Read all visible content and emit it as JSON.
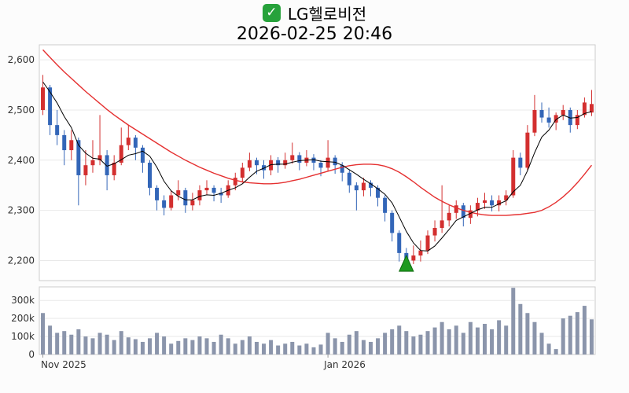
{
  "header": {
    "checkbox_glyph": "✓",
    "title": "LG헬로비전",
    "datetime": "2026-02-25 20:46"
  },
  "colors": {
    "up": "#d32f2f",
    "down": "#3366b8",
    "ma_short": "#000000",
    "ma_long": "#e53030",
    "volume": "#8b95ab",
    "marker": "#1f9a1f",
    "marker_edge": "#0d6b0d",
    "grid": "#e9e9e9",
    "axis_text": "#333333",
    "plot_border": "#cccccc",
    "plot_fill": "#ffffff"
  },
  "chart_data": {
    "type": "candlestick+volume",
    "title": "LG헬로비전",
    "subtitle": "2026-02-25 20:46",
    "legend": "none",
    "grid": true,
    "price_axis": {
      "ticks": [
        "2,600",
        "2,500",
        "2,400",
        "2,300",
        "2,200"
      ],
      "tick_values": [
        2600,
        2500,
        2400,
        2300,
        2200
      ],
      "range": [
        2160,
        2630
      ]
    },
    "volume_axis": {
      "ticks": [
        "300k",
        "200k",
        "100k",
        "0"
      ],
      "tick_values": [
        300,
        200,
        100,
        0
      ],
      "unit": "k shares",
      "range": [
        0,
        375
      ]
    },
    "x_axis": {
      "labels": [
        {
          "text": "Nov 2025",
          "index": 0
        },
        {
          "text": "Jan 2026",
          "index": 40
        }
      ]
    },
    "candles_format": [
      "open",
      "high",
      "low",
      "close"
    ],
    "candles": [
      [
        2500,
        2570,
        2490,
        2545
      ],
      [
        2545,
        2550,
        2450,
        2470
      ],
      [
        2470,
        2500,
        2430,
        2450
      ],
      [
        2450,
        2460,
        2390,
        2420
      ],
      [
        2420,
        2460,
        2400,
        2440
      ],
      [
        2440,
        2445,
        2310,
        2370
      ],
      [
        2370,
        2420,
        2350,
        2390
      ],
      [
        2390,
        2440,
        2375,
        2400
      ],
      [
        2400,
        2490,
        2390,
        2410
      ],
      [
        2410,
        2420,
        2340,
        2370
      ],
      [
        2370,
        2410,
        2360,
        2395
      ],
      [
        2395,
        2465,
        2390,
        2430
      ],
      [
        2430,
        2470,
        2420,
        2445
      ],
      [
        2445,
        2450,
        2400,
        2425
      ],
      [
        2425,
        2430,
        2375,
        2395
      ],
      [
        2395,
        2400,
        2330,
        2345
      ],
      [
        2345,
        2350,
        2300,
        2320
      ],
      [
        2320,
        2330,
        2290,
        2305
      ],
      [
        2305,
        2340,
        2300,
        2330
      ],
      [
        2330,
        2360,
        2320,
        2340
      ],
      [
        2340,
        2345,
        2295,
        2310
      ],
      [
        2310,
        2335,
        2300,
        2320
      ],
      [
        2320,
        2350,
        2310,
        2340
      ],
      [
        2340,
        2360,
        2330,
        2345
      ],
      [
        2345,
        2350,
        2318,
        2335
      ],
      [
        2335,
        2345,
        2315,
        2330
      ],
      [
        2330,
        2360,
        2325,
        2350
      ],
      [
        2350,
        2375,
        2340,
        2365
      ],
      [
        2365,
        2395,
        2355,
        2385
      ],
      [
        2385,
        2415,
        2378,
        2400
      ],
      [
        2400,
        2405,
        2372,
        2390
      ],
      [
        2390,
        2400,
        2363,
        2380
      ],
      [
        2380,
        2410,
        2370,
        2400
      ],
      [
        2400,
        2406,
        2375,
        2390
      ],
      [
        2390,
        2415,
        2383,
        2400
      ],
      [
        2400,
        2435,
        2393,
        2410
      ],
      [
        2410,
        2416,
        2380,
        2395
      ],
      [
        2395,
        2420,
        2388,
        2405
      ],
      [
        2405,
        2412,
        2380,
        2395
      ],
      [
        2395,
        2400,
        2368,
        2385
      ],
      [
        2385,
        2440,
        2378,
        2405
      ],
      [
        2405,
        2410,
        2373,
        2390
      ],
      [
        2390,
        2396,
        2358,
        2375
      ],
      [
        2375,
        2380,
        2335,
        2350
      ],
      [
        2350,
        2356,
        2300,
        2340
      ],
      [
        2340,
        2365,
        2328,
        2355
      ],
      [
        2355,
        2360,
        2328,
        2345
      ],
      [
        2345,
        2350,
        2308,
        2325
      ],
      [
        2325,
        2330,
        2278,
        2295
      ],
      [
        2295,
        2300,
        2238,
        2255
      ],
      [
        2255,
        2260,
        2198,
        2215
      ],
      [
        2215,
        2225,
        2188,
        2200
      ],
      [
        2200,
        2230,
        2193,
        2210
      ],
      [
        2210,
        2240,
        2198,
        2220
      ],
      [
        2220,
        2260,
        2213,
        2250
      ],
      [
        2250,
        2280,
        2238,
        2265
      ],
      [
        2265,
        2350,
        2255,
        2280
      ],
      [
        2280,
        2310,
        2268,
        2295
      ],
      [
        2295,
        2320,
        2283,
        2310
      ],
      [
        2310,
        2315,
        2268,
        2285
      ],
      [
        2285,
        2310,
        2273,
        2300
      ],
      [
        2300,
        2325,
        2288,
        2315
      ],
      [
        2315,
        2335,
        2303,
        2320
      ],
      [
        2320,
        2330,
        2298,
        2310
      ],
      [
        2310,
        2330,
        2298,
        2320
      ],
      [
        2320,
        2340,
        2310,
        2330
      ],
      [
        2330,
        2420,
        2325,
        2405
      ],
      [
        2405,
        2415,
        2370,
        2385
      ],
      [
        2385,
        2470,
        2380,
        2455
      ],
      [
        2455,
        2530,
        2448,
        2500
      ],
      [
        2500,
        2515,
        2475,
        2485
      ],
      [
        2485,
        2505,
        2465,
        2475
      ],
      [
        2475,
        2495,
        2460,
        2490
      ],
      [
        2490,
        2510,
        2480,
        2500
      ],
      [
        2500,
        2505,
        2455,
        2470
      ],
      [
        2470,
        2500,
        2462,
        2490
      ],
      [
        2490,
        2525,
        2485,
        2515
      ],
      [
        2495,
        2540,
        2488,
        2512
      ]
    ],
    "ma_short": [
      2556,
      2536,
      2514,
      2487,
      2465,
      2430,
      2414,
      2404,
      2402,
      2388,
      2393,
      2401,
      2410,
      2413,
      2418,
      2408,
      2386,
      2358,
      2339,
      2328,
      2321,
      2321,
      2328,
      2331,
      2330,
      2334,
      2340,
      2345,
      2353,
      2366,
      2378,
      2384,
      2391,
      2392,
      2392,
      2396,
      2399,
      2400,
      2401,
      2398,
      2397,
      2396,
      2390,
      2381,
      2372,
      2362,
      2353,
      2343,
      2332,
      2315,
      2287,
      2258,
      2235,
      2220,
      2219,
      2229,
      2245,
      2262,
      2280,
      2287,
      2294,
      2301,
      2306,
      2306,
      2313,
      2319,
      2337,
      2350,
      2379,
      2415,
      2446,
      2460,
      2481,
      2490,
      2484,
      2485,
      2493,
      2497
    ],
    "ma_long": [
      2620,
      2605,
      2590,
      2576,
      2563,
      2550,
      2537,
      2525,
      2513,
      2501,
      2490,
      2480,
      2470,
      2461,
      2452,
      2443,
      2434,
      2425,
      2416,
      2408,
      2400,
      2393,
      2386,
      2380,
      2374,
      2369,
      2364,
      2360,
      2357,
      2355,
      2354,
      2353,
      2353,
      2354,
      2356,
      2359,
      2362,
      2366,
      2370,
      2374,
      2378,
      2382,
      2386,
      2389,
      2391,
      2392,
      2392,
      2391,
      2388,
      2383,
      2376,
      2367,
      2357,
      2346,
      2336,
      2326,
      2318,
      2311,
      2305,
      2300,
      2296,
      2293,
      2291,
      2290,
      2290,
      2290,
      2291,
      2292,
      2294,
      2296,
      2300,
      2307,
      2316,
      2327,
      2340,
      2355,
      2372,
      2390
    ],
    "volumes_k": [
      230,
      160,
      120,
      130,
      110,
      140,
      100,
      90,
      120,
      110,
      80,
      130,
      95,
      85,
      70,
      90,
      120,
      100,
      60,
      75,
      90,
      80,
      100,
      90,
      70,
      110,
      90,
      60,
      80,
      100,
      70,
      60,
      80,
      50,
      60,
      70,
      50,
      60,
      40,
      55,
      120,
      90,
      70,
      110,
      130,
      80,
      70,
      90,
      120,
      140,
      160,
      130,
      100,
      110,
      130,
      150,
      180,
      140,
      160,
      120,
      180,
      150,
      170,
      140,
      190,
      160,
      370,
      280,
      230,
      180,
      120,
      60,
      30,
      200,
      215,
      235,
      270,
      195
    ],
    "buy_marker": {
      "index": 51,
      "value": 2210,
      "shape": "triangle-up",
      "color": "green"
    }
  }
}
